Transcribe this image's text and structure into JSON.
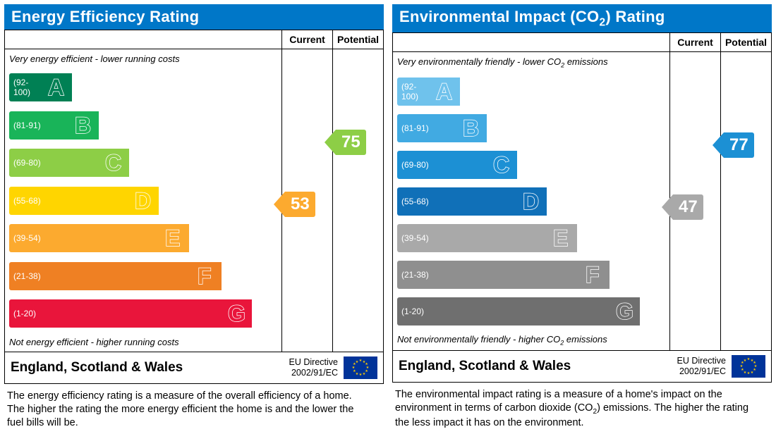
{
  "title_bar_color": "#0077c8",
  "panels": [
    {
      "title": "Energy Efficiency Rating",
      "header_current": "Current",
      "header_potential": "Potential",
      "caption_top": "Very energy efficient - lower running costs",
      "caption_bot": "Not energy efficient - higher running costs",
      "bands": [
        {
          "range": "(92-100)",
          "letter": "A",
          "color": "#008054",
          "width_pct": 23
        },
        {
          "range": "(81-91)",
          "letter": "B",
          "color": "#19b459",
          "width_pct": 33
        },
        {
          "range": "(69-80)",
          "letter": "C",
          "color": "#8dce46",
          "width_pct": 44
        },
        {
          "range": "(55-68)",
          "letter": "D",
          "color": "#ffd500",
          "width_pct": 55
        },
        {
          "range": "(39-54)",
          "letter": "E",
          "color": "#fcaa2f",
          "width_pct": 66
        },
        {
          "range": "(21-38)",
          "letter": "F",
          "color": "#ef8023",
          "width_pct": 78
        },
        {
          "range": "(1-20)",
          "letter": "G",
          "color": "#e9153b",
          "width_pct": 89
        }
      ],
      "current": {
        "value": "53",
        "band_index": 4,
        "color": "#fcaa2f"
      },
      "potential": {
        "value": "75",
        "band_index": 2,
        "color": "#8dce46"
      },
      "region": "England, Scotland & Wales",
      "directive_l1": "EU Directive",
      "directive_l2": "2002/91/EC",
      "description": "The energy efficiency rating is a measure of the overall efficiency of a home. The higher the rating the more energy efficient the home is and the lower the fuel bills will be."
    },
    {
      "title_html": "Environmental Impact (CO<sub>2</sub>) Rating",
      "header_current": "Current",
      "header_potential": "Potential",
      "caption_top_html": "Very environmentally friendly - lower CO<sub>2</sub> emissions",
      "caption_bot_html": "Not environmentally friendly - higher CO<sub>2</sub> emissions",
      "bands": [
        {
          "range": "(92-100)",
          "letter": "A",
          "color": "#6fc2ec",
          "width_pct": 23
        },
        {
          "range": "(81-91)",
          "letter": "B",
          "color": "#41aae2",
          "width_pct": 33
        },
        {
          "range": "(69-80)",
          "letter": "C",
          "color": "#1c90d4",
          "width_pct": 44
        },
        {
          "range": "(55-68)",
          "letter": "D",
          "color": "#1070b8",
          "width_pct": 55
        },
        {
          "range": "(39-54)",
          "letter": "E",
          "color": "#a9a9a9",
          "width_pct": 66
        },
        {
          "range": "(21-38)",
          "letter": "F",
          "color": "#8f8f8f",
          "width_pct": 78
        },
        {
          "range": "(1-20)",
          "letter": "G",
          "color": "#6f6f6f",
          "width_pct": 89
        }
      ],
      "current": {
        "value": "47",
        "band_index": 4,
        "color": "#a9a9a9"
      },
      "potential": {
        "value": "77",
        "band_index": 2,
        "color": "#1c90d4"
      },
      "region": "England, Scotland & Wales",
      "directive_l1": "EU Directive",
      "directive_l2": "2002/91/EC",
      "description_html": "The environmental impact rating is a measure of a home's impact on the environment in terms of carbon dioxide (CO<sub>2</sub>) emissions. The higher the rating the less impact it has on the environment."
    }
  ]
}
